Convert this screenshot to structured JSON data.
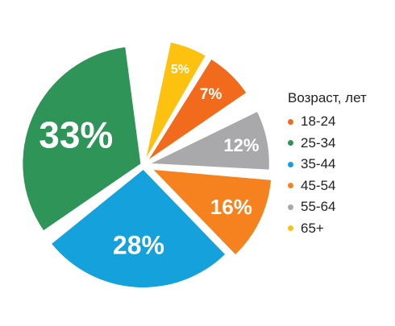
{
  "chart_data": {
    "type": "pie",
    "legend_title": "Возраст, лет",
    "legend_position": "right",
    "exploded": true,
    "slices": [
      {
        "label": "18-24",
        "value": 7,
        "value_label": "7%",
        "color": "#f26b1d"
      },
      {
        "label": "25-34",
        "value": 33,
        "value_label": "33%",
        "color": "#2e9458"
      },
      {
        "label": "35-44",
        "value": 28,
        "value_label": "28%",
        "color": "#15a1dc"
      },
      {
        "label": "45-54",
        "value": 16,
        "value_label": "16%",
        "color": "#f5821f"
      },
      {
        "label": "55-64",
        "value": 12,
        "value_label": "12%",
        "color": "#a9a9ab"
      },
      {
        "label": "65+",
        "value": 5,
        "value_label": "5%",
        "color": "#fcc20f"
      }
    ]
  }
}
